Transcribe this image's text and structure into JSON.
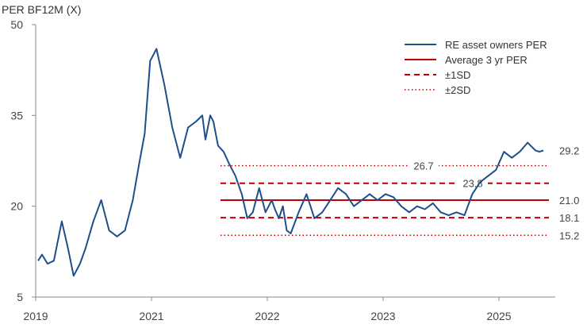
{
  "chart_data": {
    "type": "line",
    "title": "PER BF12M (X)",
    "xlabel": "",
    "ylabel": "",
    "x_ticks": [
      "2019",
      "2021",
      "2022",
      "2023",
      "2025"
    ],
    "y_ticks": [
      5,
      20,
      35,
      50
    ],
    "ylim": [
      5,
      50
    ],
    "grid": false,
    "legend_position": "top-right",
    "legend": [
      {
        "label": "RE asset owners PER",
        "style": "solid-thin",
        "color": "#1f4e8c"
      },
      {
        "label": "Average 3 yr PER",
        "style": "solid",
        "color": "#c00000"
      },
      {
        "label": "±1SD",
        "style": "dashed",
        "color": "#c00000"
      },
      {
        "label": "±2SD",
        "style": "dotted",
        "color": "#c00000"
      }
    ],
    "reference_lines": [
      {
        "name": "+2SD",
        "value": 26.7,
        "label": "26.7",
        "style": "dotted"
      },
      {
        "name": "+1SD",
        "value": 23.8,
        "label": "23.8",
        "style": "dashed"
      },
      {
        "name": "Average 3 yr PER",
        "value": 21.0,
        "label": "21.0",
        "style": "solid"
      },
      {
        "name": "-1SD",
        "value": 18.1,
        "label": "18.1",
        "style": "dashed"
      },
      {
        "name": "-2SD",
        "value": 15.2,
        "label": "15.2",
        "style": "dotted"
      }
    ],
    "last_value_label": "29.2",
    "series": [
      {
        "name": "RE asset owners PER",
        "color": "#1f4e8c",
        "x": [
          2019.0,
          2019.05,
          2019.12,
          2019.2,
          2019.3,
          2019.38,
          2019.45,
          2019.53,
          2019.6,
          2019.7,
          2019.8,
          2019.9,
          2020.0,
          2020.1,
          2020.2,
          2020.28,
          2020.35,
          2020.42,
          2020.5,
          2020.6,
          2020.7,
          2020.8,
          2020.9,
          2021.0,
          2021.08,
          2021.12,
          2021.18,
          2021.22,
          2021.28,
          2021.35,
          2021.42,
          2021.5,
          2021.58,
          2021.65,
          2021.72,
          2021.8,
          2021.88,
          2021.96,
          2022.0,
          2022.05,
          2022.1,
          2022.15,
          2022.2,
          2022.3,
          2022.4,
          2022.5,
          2022.6,
          2022.7,
          2022.8,
          2022.9,
          2023.0,
          2023.1,
          2023.2,
          2023.3,
          2023.4,
          2023.5,
          2023.6,
          2023.7,
          2023.8,
          2023.9,
          2024.0,
          2024.1,
          2024.2,
          2024.3,
          2024.4,
          2024.5,
          2024.6,
          2024.7,
          2024.8,
          2024.9,
          2025.0,
          2025.1,
          2025.2,
          2025.3,
          2025.35,
          2025.4
        ],
        "values": [
          11,
          12,
          10.5,
          11,
          17.5,
          13,
          8.5,
          10.5,
          13,
          17.5,
          21,
          16,
          15,
          16,
          21,
          27,
          32,
          44,
          46,
          40,
          33,
          28,
          33,
          34,
          35,
          31,
          35,
          34,
          30,
          29,
          27,
          25,
          22,
          18,
          19,
          23,
          19,
          21,
          19.5,
          18,
          20,
          16,
          15.5,
          19,
          22,
          18,
          19,
          21,
          23,
          22,
          20,
          21,
          22,
          21,
          22,
          21.5,
          20,
          19,
          20,
          19.5,
          20.5,
          19,
          18.5,
          19,
          18.5,
          22,
          24,
          25,
          26,
          29,
          28,
          29,
          30.5,
          29.2,
          29,
          29.2
        ]
      }
    ]
  }
}
